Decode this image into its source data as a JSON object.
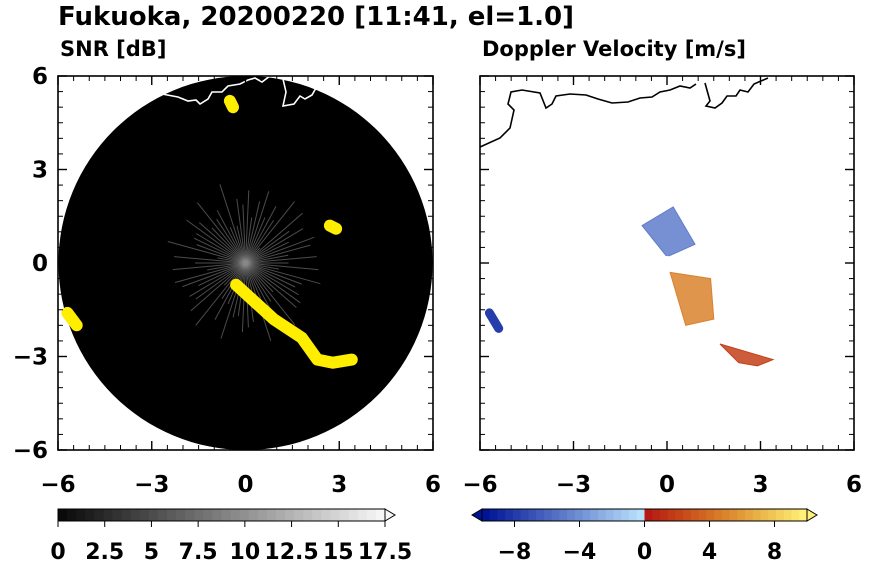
{
  "chart_data": [
    {
      "type": "heatmap",
      "title": "Fukuoka, 20200220 [11:41, el=1.0]",
      "subtitle": "SNR [dB]",
      "xlim": [
        -6,
        6
      ],
      "ylim": [
        -6,
        6
      ],
      "x_ticks": [
        "−6",
        "−3",
        "0",
        "3",
        "6"
      ],
      "y_ticks": [
        "6",
        "3",
        "0",
        "−3",
        "−6"
      ],
      "grid": false,
      "coastline_color": "#ffffff",
      "echo_color": "#ffee00",
      "background_color": "#000000",
      "colorbar": {
        "range": [
          0,
          17.5
        ],
        "tick_labels": [
          "0",
          "2.5",
          "5",
          "7.5",
          "10",
          "12.5",
          "15",
          "17.5"
        ],
        "extend": "max"
      },
      "echo_features": [
        {
          "name": "sw-band",
          "points": [
            [
              -0.3,
              -0.7
            ],
            [
              0.9,
              -1.8
            ],
            [
              1.8,
              -2.4
            ],
            [
              2.3,
              -3.1
            ],
            [
              2.8,
              -3.2
            ],
            [
              3.4,
              -3.1
            ]
          ]
        },
        {
          "name": "w-edge",
          "points": [
            [
              -5.7,
              -1.6
            ],
            [
              -5.4,
              -2.0
            ]
          ]
        },
        {
          "name": "ne-cluster",
          "points": [
            [
              2.7,
              1.2
            ],
            [
              2.9,
              1.1
            ]
          ]
        },
        {
          "name": "n-spot",
          "points": [
            [
              -0.5,
              5.2
            ],
            [
              -0.4,
              5.0
            ]
          ]
        }
      ]
    },
    {
      "type": "heatmap",
      "subtitle": "Doppler Velocity [m/s]",
      "xlim": [
        -6,
        6
      ],
      "ylim": [
        -6,
        6
      ],
      "x_ticks": [
        "−6",
        "−3",
        "0",
        "3",
        "6"
      ],
      "y_ticks": [
        "6",
        "3",
        "0",
        "−3",
        "−6"
      ],
      "grid": false,
      "coastline_color": "#000000",
      "background_color": "#ffffff",
      "colorbar": {
        "range": [
          -10,
          10
        ],
        "tick_labels": [
          "−8",
          "−4",
          "0",
          "4",
          "8"
        ],
        "extend": "both"
      },
      "echo_features": [
        {
          "name": "approaching-ne",
          "velocity": -5,
          "points": [
            [
              -0.8,
              1.2
            ],
            [
              0.2,
              1.8
            ],
            [
              0.9,
              0.6
            ],
            [
              0.0,
              0.2
            ]
          ]
        },
        {
          "name": "receding-se",
          "velocity": 5,
          "points": [
            [
              0.1,
              -0.3
            ],
            [
              1.4,
              -0.5
            ],
            [
              1.5,
              -1.8
            ],
            [
              0.6,
              -2.0
            ]
          ]
        },
        {
          "name": "sw-band",
          "velocity": 2,
          "points": [
            [
              1.7,
              -2.6
            ],
            [
              2.3,
              -3.2
            ],
            [
              2.9,
              -3.3
            ],
            [
              3.4,
              -3.1
            ]
          ]
        },
        {
          "name": "w-edge",
          "velocity": -8,
          "points": [
            [
              -5.7,
              -1.6
            ],
            [
              -5.4,
              -2.1
            ]
          ]
        }
      ]
    }
  ]
}
